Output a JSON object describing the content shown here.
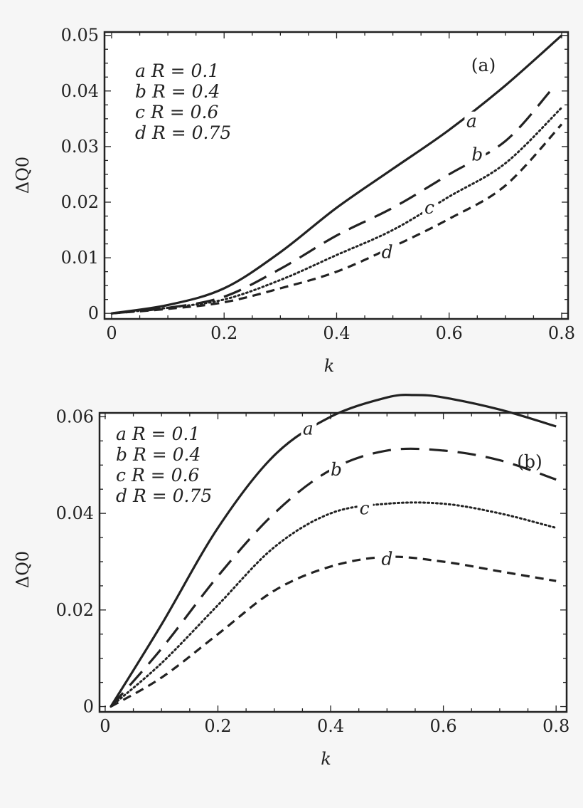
{
  "chart_data": [
    {
      "type": "line",
      "panel_label": "(a)",
      "xlabel": "k",
      "ylabel": "ΔQ0",
      "xlim": [
        -0.0126,
        0.8114
      ],
      "ylim": [
        -0.001,
        0.0506
      ],
      "xticks": [
        0,
        0.2,
        0.4,
        0.6,
        0.8
      ],
      "xtick_labels": [
        "0",
        "0.2",
        "0.4",
        "0.6",
        "0.8"
      ],
      "yticks": [
        0,
        0.01,
        0.02,
        0.03,
        0.04,
        0.05
      ],
      "ytick_labels": [
        "0",
        "0.01",
        "0.02",
        "0.03",
        "0.04",
        "0.05"
      ],
      "grid": false,
      "legend_placement": "top-left",
      "legend": [
        "a R = 0.1",
        "b R = 0.4",
        "c R = 0.6",
        "d R = 0.75"
      ],
      "series": [
        {
          "name": "a",
          "style": "solid",
          "label_at": [
            0.64,
            0.0345
          ],
          "x": [
            0,
            0.1,
            0.2,
            0.3,
            0.4,
            0.5,
            0.6,
            0.7,
            0.8
          ],
          "y": [
            0,
            0.0015,
            0.0045,
            0.011,
            0.019,
            0.026,
            0.033,
            0.041,
            0.05
          ]
        },
        {
          "name": "b",
          "style": "long-dash",
          "label_at": [
            0.65,
            0.0285
          ],
          "x": [
            0,
            0.1,
            0.2,
            0.3,
            0.4,
            0.5,
            0.6,
            0.7,
            0.78
          ],
          "y": [
            0,
            0.001,
            0.003,
            0.008,
            0.014,
            0.019,
            0.025,
            0.031,
            0.04
          ]
        },
        {
          "name": "c",
          "style": "dotted",
          "label_at": [
            0.565,
            0.019
          ],
          "x": [
            0,
            0.1,
            0.2,
            0.3,
            0.4,
            0.5,
            0.6,
            0.7,
            0.8
          ],
          "y": [
            0,
            0.001,
            0.0025,
            0.006,
            0.0105,
            0.015,
            0.021,
            0.027,
            0.037
          ]
        },
        {
          "name": "d",
          "style": "short-dash",
          "label_at": [
            0.49,
            0.011
          ],
          "x": [
            0,
            0.1,
            0.2,
            0.3,
            0.4,
            0.5,
            0.6,
            0.7,
            0.8
          ],
          "y": [
            0,
            0.0008,
            0.002,
            0.0045,
            0.0075,
            0.012,
            0.017,
            0.023,
            0.034
          ]
        }
      ]
    },
    {
      "type": "line",
      "panel_label": "(b)",
      "xlabel": "k",
      "ylabel": "ΔQ0",
      "xlim": [
        -0.01,
        0.8187
      ],
      "ylim": [
        -0.0011,
        0.0608
      ],
      "xticks": [
        0,
        0.2,
        0.4,
        0.6,
        0.8
      ],
      "xtick_labels": [
        "0",
        "0.2",
        "0.4",
        "0.6",
        "0.8"
      ],
      "yticks": [
        0,
        0.02,
        0.04,
        0.06
      ],
      "ytick_labels": [
        "0",
        "0.02",
        "0.04",
        "0.06"
      ],
      "grid": false,
      "legend_placement": "top-left",
      "legend": [
        "a R = 0.1",
        "b R = 0.4",
        "c R = 0.6",
        "d R = 0.75"
      ],
      "series": [
        {
          "name": "a",
          "style": "solid",
          "label_at": [
            0.36,
            0.0575
          ],
          "x": [
            0.01,
            0.1,
            0.2,
            0.3,
            0.4,
            0.5,
            0.55,
            0.6,
            0.7,
            0.8
          ],
          "y": [
            0,
            0.017,
            0.037,
            0.052,
            0.06,
            0.064,
            0.0645,
            0.064,
            0.0615,
            0.058
          ]
        },
        {
          "name": "b",
          "style": "long-dash",
          "label_at": [
            0.41,
            0.049
          ],
          "x": [
            0.01,
            0.1,
            0.2,
            0.3,
            0.4,
            0.5,
            0.6,
            0.7,
            0.8
          ],
          "y": [
            0,
            0.012,
            0.027,
            0.04,
            0.049,
            0.053,
            0.053,
            0.051,
            0.047
          ]
        },
        {
          "name": "c",
          "style": "dotted",
          "label_at": [
            0.46,
            0.041
          ],
          "x": [
            0.01,
            0.1,
            0.2,
            0.3,
            0.4,
            0.5,
            0.6,
            0.7,
            0.8
          ],
          "y": [
            0,
            0.009,
            0.021,
            0.033,
            0.04,
            0.042,
            0.042,
            0.04,
            0.037
          ]
        },
        {
          "name": "d",
          "style": "short-dash",
          "label_at": [
            0.5,
            0.0305
          ],
          "x": [
            0.01,
            0.1,
            0.2,
            0.3,
            0.4,
            0.5,
            0.6,
            0.7,
            0.8
          ],
          "y": [
            0,
            0.006,
            0.015,
            0.024,
            0.029,
            0.031,
            0.03,
            0.028,
            0.026
          ]
        }
      ]
    }
  ]
}
